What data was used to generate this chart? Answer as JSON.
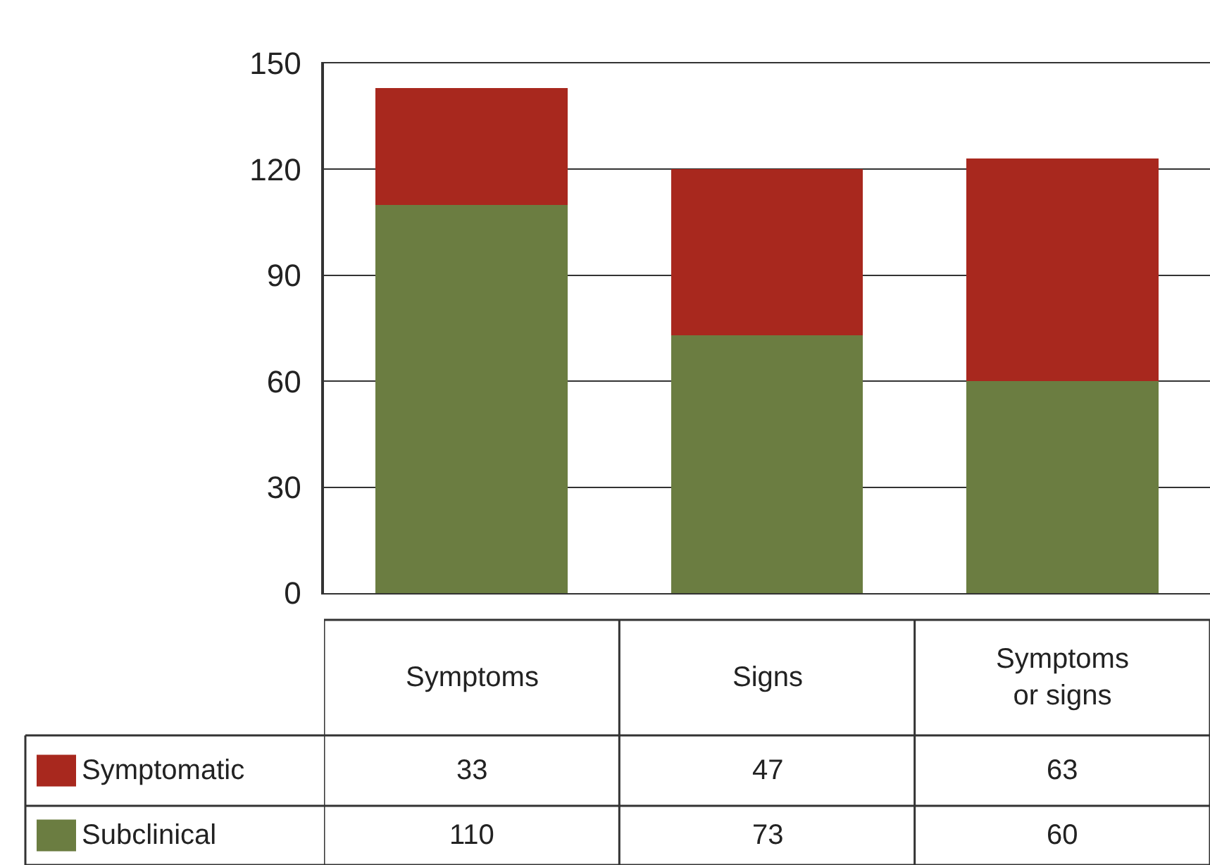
{
  "chart_data": {
    "type": "bar",
    "stacked": true,
    "categories": [
      "Symptoms",
      "Signs",
      "Symptoms or signs"
    ],
    "series": [
      {
        "name": "Subclinical",
        "color": "#6b7d41",
        "values": [
          110,
          73,
          60
        ]
      },
      {
        "name": "Symptomatic",
        "color": "#a8281e",
        "values": [
          33,
          47,
          63
        ]
      }
    ],
    "ylim": [
      0,
      150
    ],
    "yticks": [
      0,
      30,
      60,
      90,
      120,
      150
    ],
    "grid": "y",
    "legend": "bottom left",
    "data_labels": true
  }
}
